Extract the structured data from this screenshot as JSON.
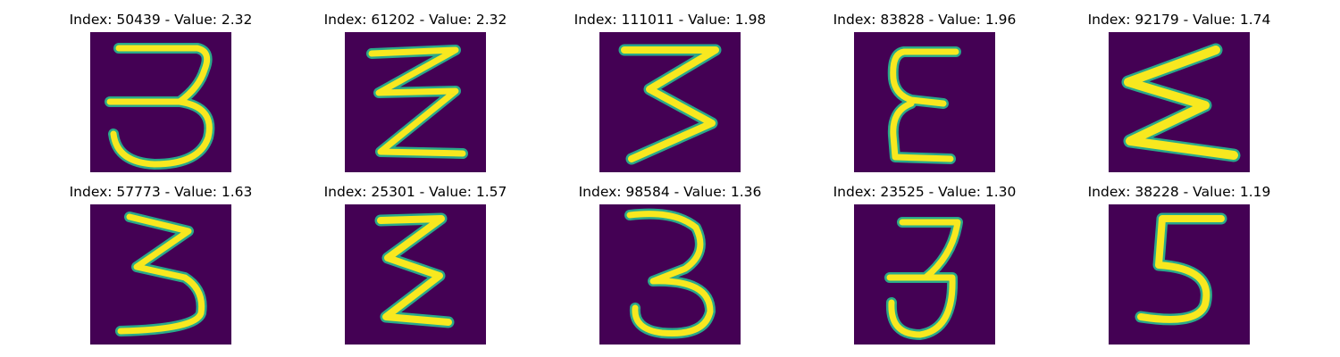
{
  "colors": {
    "background": "#440154",
    "glow": "#2aa98a",
    "core": "#f8e81f"
  },
  "panels": [
    {
      "title": "Index: 50439 - Value: 2.32",
      "shape": "digit-3-tall"
    },
    {
      "title": "Index: 61202 - Value: 2.32",
      "shape": "zigzag-z"
    },
    {
      "title": "Index: 111011 - Value: 1.98",
      "shape": "zigzag-three"
    },
    {
      "title": "Index: 83828 - Value: 1.96",
      "shape": "epsilon"
    },
    {
      "title": "Index: 92179 - Value: 1.74",
      "shape": "sigma"
    },
    {
      "title": "Index: 57773 - Value: 1.63",
      "shape": "three-angular"
    },
    {
      "title": "Index: 25301 - Value: 1.57",
      "shape": "sigma-narrow"
    },
    {
      "title": "Index: 98584 - Value: 1.36",
      "shape": "digit-3-round"
    },
    {
      "title": "Index: 23525 - Value: 1.30",
      "shape": "digit-3-small"
    },
    {
      "title": "Index: 38228 - Value: 1.19",
      "shape": "digit-5"
    }
  ]
}
